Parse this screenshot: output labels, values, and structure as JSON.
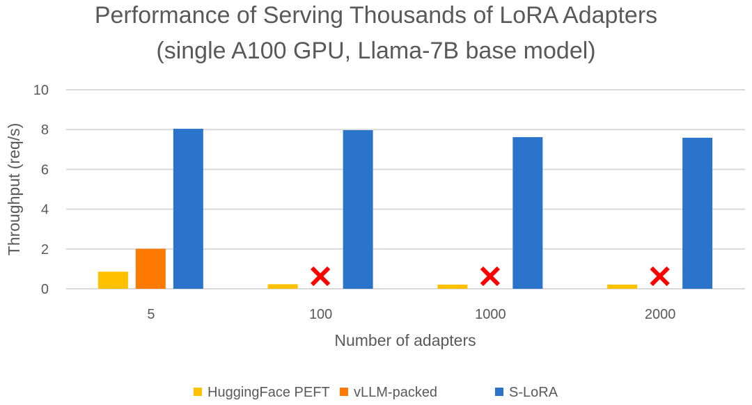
{
  "chart_data": {
    "type": "bar",
    "title": "Performance of Serving Thousands of LoRA Adapters",
    "subtitle": "(single A100 GPU, Llama-7B base model)",
    "xlabel": "Number of adapters",
    "ylabel": "Throughput (req/s)",
    "ylim": [
      0,
      10
    ],
    "yticks": [
      "0",
      "2",
      "4",
      "6",
      "8",
      "10"
    ],
    "grid": true,
    "legend_position": "bottom",
    "categories": [
      "5",
      "100",
      "1000",
      "2000"
    ],
    "series": [
      {
        "name": "HuggingFace PEFT",
        "color": "#FFC000",
        "values": [
          0.86,
          0.23,
          0.21,
          0.21
        ]
      },
      {
        "name": "vLLM-packed",
        "color": "#FF7A00",
        "values": [
          2.01,
          null,
          null,
          null
        ],
        "failed_marker": [
          false,
          true,
          true,
          true
        ]
      },
      {
        "name": "S-LoRA",
        "color": "#2A75CB",
        "values": [
          8.04,
          7.97,
          7.62,
          7.59
        ]
      }
    ],
    "failed_marker_color": "#FF0000"
  }
}
